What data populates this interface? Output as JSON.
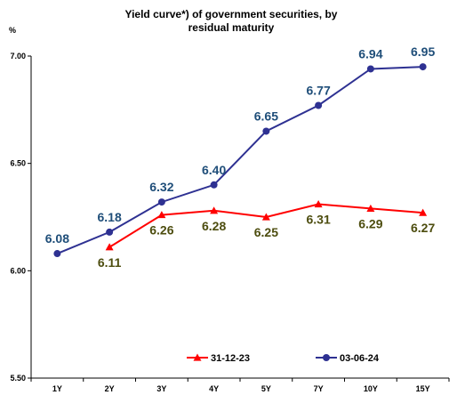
{
  "chart_data": {
    "type": "line",
    "title_lines": [
      "Yield curve*) of government securities, by",
      "residual maturity"
    ],
    "ylabel": "%",
    "xlabel": "",
    "categories": [
      "1Y",
      "2Y",
      "3Y",
      "4Y",
      "5Y",
      "7Y",
      "10Y",
      "15Y"
    ],
    "ylim": [
      5.5,
      7.0
    ],
    "yticks": [
      "5.50",
      "6.00",
      "6.50",
      "7.00"
    ],
    "grid": false,
    "legend_position": "bottom",
    "series": [
      {
        "name": "31-12-23",
        "color": "#ff0000",
        "marker": "triangle",
        "values": [
          null,
          6.11,
          6.26,
          6.28,
          6.25,
          6.31,
          6.29,
          6.27
        ],
        "labels": [
          null,
          "6.11",
          "6.26",
          "6.28",
          "6.25",
          "6.31",
          "6.29",
          "6.27"
        ]
      },
      {
        "name": "03-06-24",
        "color": "#2e3192",
        "marker": "circle",
        "values": [
          6.08,
          6.18,
          6.32,
          6.4,
          6.65,
          6.77,
          6.94,
          6.95
        ],
        "labels": [
          "6.08",
          "6.18",
          "6.32",
          "6.40",
          "6.65",
          "6.77",
          "6.94",
          "6.95"
        ]
      }
    ]
  }
}
